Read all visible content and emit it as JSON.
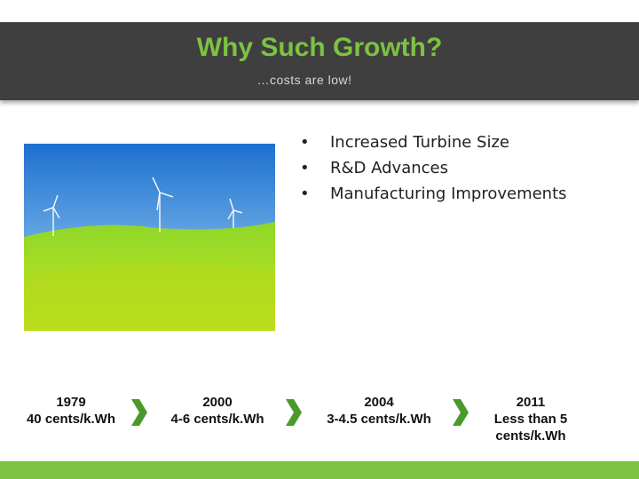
{
  "header": {
    "title": "Why Such Growth?",
    "subtitle": "…costs are low!"
  },
  "bullets": [
    "Increased Turbine Size",
    "R&D Advances",
    "Manufacturing Improvements"
  ],
  "timeline": [
    {
      "year": "1979",
      "cost": "40 cents/k.Wh"
    },
    {
      "year": "2000",
      "cost": "4-6 cents/k.Wh"
    },
    {
      "year": "2004",
      "cost": "3-4.5 cents/k.Wh"
    },
    {
      "year": "2011",
      "cost": "Less than 5 cents/k.Wh"
    }
  ]
}
